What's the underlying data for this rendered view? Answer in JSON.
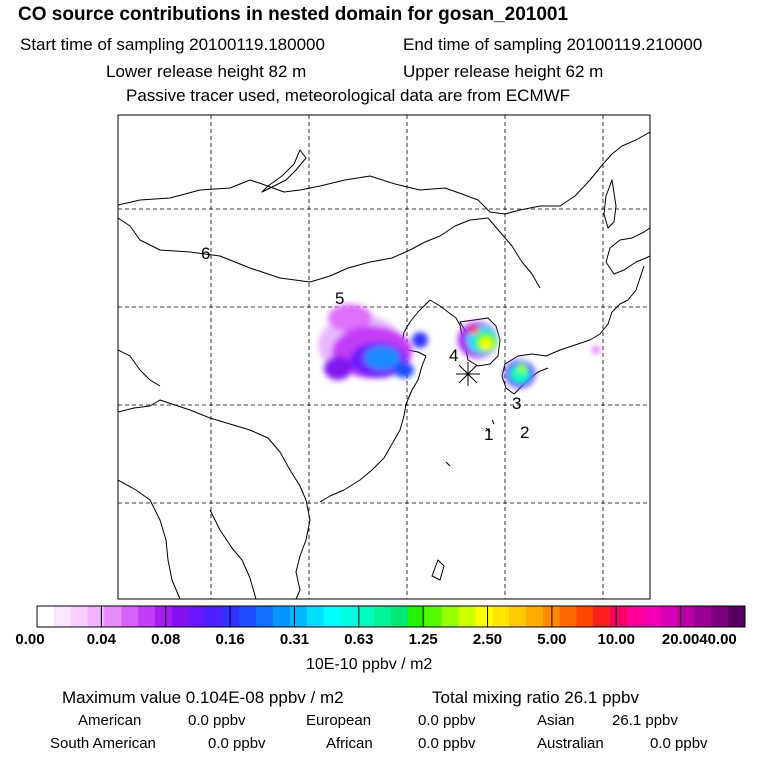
{
  "header": {
    "title": "CO  source contributions in nested domain for gosan_201001",
    "start_time": "Start time of sampling 20100119.180000",
    "end_time": "End time of sampling 20100119.210000",
    "lower_height": "Lower release height   82 m",
    "upper_height": "Upper release height   62 m",
    "tracer_note": "Passive tracer used, meteorological data are from ECMWF"
  },
  "map": {
    "region_labels": [
      "1",
      "2",
      "3",
      "4",
      "5",
      "6"
    ],
    "receptor_marker": "star-marker"
  },
  "colorbar": {
    "ticks": [
      "0.00",
      "0.04",
      "0.08",
      "0.16",
      "0.31",
      "0.63",
      "1.25",
      "2.50",
      "5.00",
      "10.00",
      "20.00",
      "40.00"
    ],
    "colors": [
      "#ffffff",
      "#fbe6ff",
      "#f6cfff",
      "#f0b4ff",
      "#e38dfb",
      "#d462f8",
      "#c03ef5",
      "#a51ef2",
      "#8412f0",
      "#6a16ff",
      "#4c21ff",
      "#3232ff",
      "#1f4dff",
      "#1070ff",
      "#0894ff",
      "#00b6ff",
      "#00dfff",
      "#00ffff",
      "#00ffe2",
      "#00ffbe",
      "#00f59a",
      "#00e876",
      "#24f200",
      "#56fa00",
      "#96ff00",
      "#cdff00",
      "#fdff00",
      "#ffe600",
      "#ffca00",
      "#ffab00",
      "#ff8c00",
      "#ff6800",
      "#ff4400",
      "#ff1e1e",
      "#ff0066",
      "#ff0098",
      "#f500b4",
      "#d800b4",
      "#bb00a5",
      "#9a0092",
      "#7a007c",
      "#580060"
    ],
    "units": "10E-10 ppbv / m2"
  },
  "footer": {
    "max_value": "Maximum value  0.104E-08 ppbv / m2",
    "total_mixing": "Total mixing ratio      26.1 ppbv",
    "contributions": [
      {
        "label": "American",
        "value": "0.0 ppbv"
      },
      {
        "label": "European",
        "value": "0.0 ppbv"
      },
      {
        "label": "Asian",
        "value": "26.1 ppbv"
      },
      {
        "label": "South American",
        "value": "0.0 ppbv"
      },
      {
        "label": "African",
        "value": "0.0 ppbv"
      },
      {
        "label": "Australian",
        "value": "0.0 ppbv"
      }
    ]
  }
}
